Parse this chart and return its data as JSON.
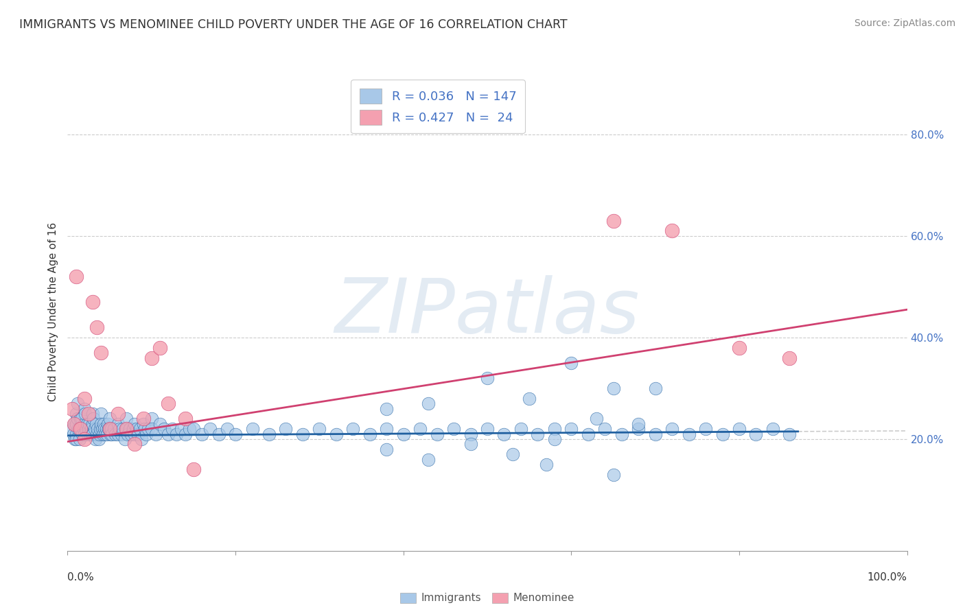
{
  "title": "IMMIGRANTS VS MENOMINEE CHILD POVERTY UNDER THE AGE OF 16 CORRELATION CHART",
  "source": "Source: ZipAtlas.com",
  "ylabel": "Child Poverty Under the Age of 16",
  "watermark": "ZIPatlas",
  "legend_blue_r": "0.036",
  "legend_blue_n": "147",
  "legend_pink_r": "0.427",
  "legend_pink_n": " 24",
  "blue_color": "#a8c8e8",
  "pink_color": "#f4a0b0",
  "blue_line_color": "#2060a0",
  "pink_line_color": "#d04070",
  "right_ytick_labels": [
    "20.0%",
    "40.0%",
    "60.0%",
    "80.0%"
  ],
  "right_ytick_values": [
    0.2,
    0.4,
    0.6,
    0.8
  ],
  "xlim": [
    0.0,
    1.0
  ],
  "ylim": [
    -0.02,
    0.92
  ],
  "blue_trend_x": [
    0.0,
    0.87
  ],
  "blue_trend_y": [
    0.207,
    0.215
  ],
  "pink_trend_x": [
    0.0,
    1.0
  ],
  "pink_trend_y": [
    0.195,
    0.455
  ],
  "background_color": "#ffffff",
  "grid_color": "#cccccc",
  "blue_scatter_x": [
    0.005,
    0.007,
    0.008,
    0.009,
    0.01,
    0.01,
    0.01,
    0.01,
    0.012,
    0.012,
    0.013,
    0.014,
    0.015,
    0.016,
    0.017,
    0.018,
    0.019,
    0.02,
    0.02,
    0.02,
    0.021,
    0.022,
    0.023,
    0.024,
    0.025,
    0.026,
    0.027,
    0.028,
    0.029,
    0.03,
    0.03,
    0.03,
    0.031,
    0.032,
    0.033,
    0.034,
    0.035,
    0.036,
    0.037,
    0.038,
    0.039,
    0.04,
    0.04,
    0.041,
    0.042,
    0.043,
    0.044,
    0.045,
    0.046,
    0.047,
    0.048,
    0.049,
    0.05,
    0.05,
    0.051,
    0.052,
    0.053,
    0.055,
    0.057,
    0.06,
    0.06,
    0.062,
    0.064,
    0.066,
    0.068,
    0.07,
    0.07,
    0.072,
    0.074,
    0.076,
    0.078,
    0.08,
    0.08,
    0.082,
    0.084,
    0.086,
    0.088,
    0.09,
    0.092,
    0.094,
    0.096,
    0.1,
    0.1,
    0.105,
    0.11,
    0.115,
    0.12,
    0.125,
    0.13,
    0.135,
    0.14,
    0.145,
    0.15,
    0.16,
    0.17,
    0.18,
    0.19,
    0.2,
    0.22,
    0.24,
    0.26,
    0.28,
    0.3,
    0.32,
    0.34,
    0.36,
    0.38,
    0.4,
    0.42,
    0.44,
    0.46,
    0.48,
    0.5,
    0.52,
    0.54,
    0.56,
    0.58,
    0.6,
    0.62,
    0.64,
    0.66,
    0.68,
    0.7,
    0.72,
    0.74,
    0.76,
    0.78,
    0.8,
    0.82,
    0.84,
    0.86,
    0.5,
    0.55,
    0.6,
    0.65,
    0.38,
    0.43,
    0.48,
    0.53,
    0.58,
    0.63,
    0.68,
    0.38,
    0.43,
    0.57,
    0.65,
    0.7
  ],
  "blue_scatter_y": [
    0.22,
    0.21,
    0.23,
    0.2,
    0.25,
    0.23,
    0.21,
    0.2,
    0.27,
    0.24,
    0.22,
    0.2,
    0.24,
    0.22,
    0.24,
    0.21,
    0.22,
    0.26,
    0.23,
    0.21,
    0.25,
    0.22,
    0.23,
    0.21,
    0.22,
    0.23,
    0.21,
    0.22,
    0.21,
    0.25,
    0.23,
    0.21,
    0.24,
    0.22,
    0.2,
    0.23,
    0.21,
    0.22,
    0.2,
    0.21,
    0.22,
    0.25,
    0.23,
    0.22,
    0.21,
    0.23,
    0.22,
    0.21,
    0.22,
    0.21,
    0.23,
    0.22,
    0.24,
    0.22,
    0.21,
    0.22,
    0.21,
    0.22,
    0.21,
    0.23,
    0.21,
    0.22,
    0.21,
    0.22,
    0.2,
    0.24,
    0.22,
    0.21,
    0.22,
    0.21,
    0.22,
    0.23,
    0.21,
    0.22,
    0.21,
    0.22,
    0.2,
    0.23,
    0.22,
    0.21,
    0.22,
    0.24,
    0.22,
    0.21,
    0.23,
    0.22,
    0.21,
    0.22,
    0.21,
    0.22,
    0.21,
    0.22,
    0.22,
    0.21,
    0.22,
    0.21,
    0.22,
    0.21,
    0.22,
    0.21,
    0.22,
    0.21,
    0.22,
    0.21,
    0.22,
    0.21,
    0.22,
    0.21,
    0.22,
    0.21,
    0.22,
    0.21,
    0.22,
    0.21,
    0.22,
    0.21,
    0.22,
    0.22,
    0.21,
    0.22,
    0.21,
    0.22,
    0.21,
    0.22,
    0.21,
    0.22,
    0.21,
    0.22,
    0.21,
    0.22,
    0.21,
    0.32,
    0.28,
    0.35,
    0.3,
    0.26,
    0.27,
    0.19,
    0.17,
    0.2,
    0.24,
    0.23,
    0.18,
    0.16,
    0.15,
    0.13,
    0.3
  ],
  "pink_scatter_x": [
    0.005,
    0.008,
    0.01,
    0.015,
    0.02,
    0.02,
    0.025,
    0.03,
    0.035,
    0.04,
    0.05,
    0.06,
    0.07,
    0.08,
    0.09,
    0.1,
    0.11,
    0.12,
    0.14,
    0.15,
    0.65,
    0.72,
    0.8,
    0.86
  ],
  "pink_scatter_y": [
    0.26,
    0.23,
    0.52,
    0.22,
    0.28,
    0.2,
    0.25,
    0.47,
    0.42,
    0.37,
    0.22,
    0.25,
    0.22,
    0.19,
    0.24,
    0.36,
    0.38,
    0.27,
    0.24,
    0.14,
    0.63,
    0.61,
    0.38,
    0.36
  ]
}
